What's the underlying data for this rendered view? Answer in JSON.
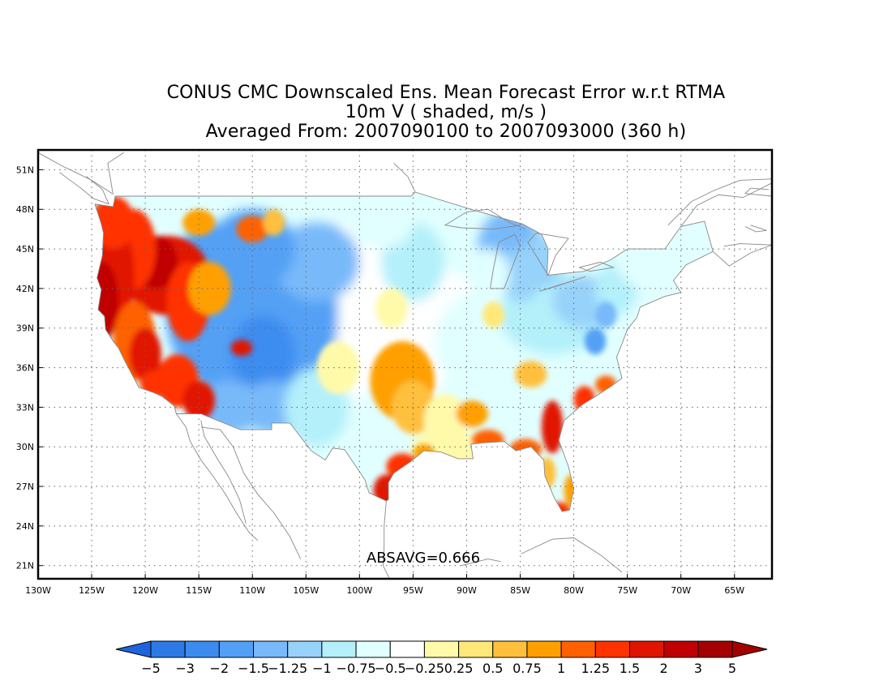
{
  "title": {
    "line1": "CONUS CMC Downscaled Ens. Mean Forecast Error w.r.t RTMA",
    "line2": "10m V ( shaded, m/s )",
    "line3": "Averaged From: 2007090100 to 2007093000 (360 h)"
  },
  "map": {
    "lat_labels": [
      "51N",
      "48N",
      "45N",
      "42N",
      "39N",
      "36N",
      "33N",
      "30N",
      "27N",
      "24N",
      "21N"
    ],
    "lon_labels": [
      "130W",
      "125W",
      "120W",
      "115W",
      "110W",
      "105W",
      "100W",
      "95W",
      "90W",
      "85W",
      "80W",
      "75W",
      "70W",
      "65W"
    ],
    "lat_values": [
      51,
      48,
      45,
      42,
      39,
      36,
      33,
      30,
      27,
      24,
      21
    ],
    "lon_values": [
      -130,
      -125,
      -120,
      -115,
      -110,
      -105,
      -100,
      -95,
      -90,
      -85,
      -80,
      -75,
      -70,
      -65
    ],
    "lon_range": [
      -130,
      -61.5
    ],
    "lat_range": [
      20,
      52.5
    ],
    "grid": "dotted",
    "absavg_label": "ABSAVG=0.666"
  },
  "colorbar": {
    "labels": [
      "−5",
      "−3",
      "−2",
      "−1.5",
      "−1.25",
      "−1",
      "−0.75",
      "−0.5",
      "−0.25",
      "0.25",
      "0.5",
      "0.75",
      "1",
      "1.25",
      "1.5",
      "2",
      "3",
      "5"
    ],
    "colors": [
      "#1e64dc",
      "#2d7ae6",
      "#3c8cf0",
      "#52a0f5",
      "#78b9fa",
      "#96d2fa",
      "#b4f0fa",
      "#e1ffff",
      "#ffffff",
      "#fffaaa",
      "#ffe878",
      "#ffc03c",
      "#ffa000",
      "#ff6000",
      "#ff3200",
      "#e11400",
      "#c00000",
      "#a50000"
    ]
  }
}
